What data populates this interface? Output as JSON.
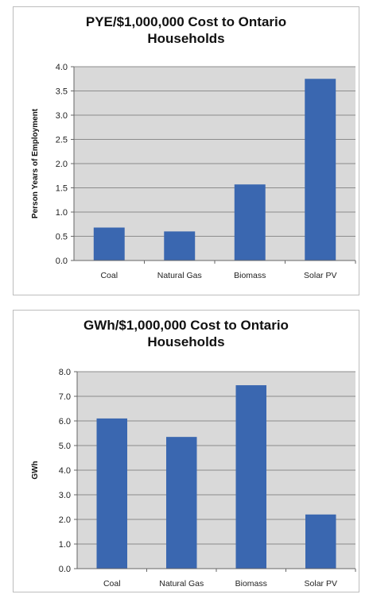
{
  "chart_data": [
    {
      "type": "bar",
      "title_lines": [
        "PYE/$1,000,000 Cost to Ontario",
        "Households"
      ],
      "categories": [
        "Coal",
        "Natural Gas",
        "Biomass",
        "Solar PV"
      ],
      "values": [
        0.68,
        0.6,
        1.57,
        3.75
      ],
      "ylabel": "Person Years of Employment",
      "ylim": [
        0,
        4
      ],
      "yticks": [
        "0.0",
        "0.5",
        "1.0",
        "1.5",
        "2.0",
        "2.5",
        "3.0",
        "3.5",
        "4.0"
      ],
      "grid": true,
      "bar_color": "#3A67B0",
      "plot_bg": "#D9D9D9"
    },
    {
      "type": "bar",
      "title_lines": [
        "GWh/$1,000,000 Cost to Ontario",
        "Households"
      ],
      "categories": [
        "Coal",
        "Natural Gas",
        "Biomass",
        "Solar PV"
      ],
      "values": [
        6.1,
        5.35,
        7.45,
        2.2
      ],
      "ylabel": "GWh",
      "ylim": [
        0,
        8
      ],
      "yticks": [
        "0.0",
        "1.0",
        "2.0",
        "3.0",
        "4.0",
        "5.0",
        "6.0",
        "7.0",
        "8.0"
      ],
      "grid": true,
      "bar_color": "#3A67B0",
      "plot_bg": "#D9D9D9"
    }
  ]
}
